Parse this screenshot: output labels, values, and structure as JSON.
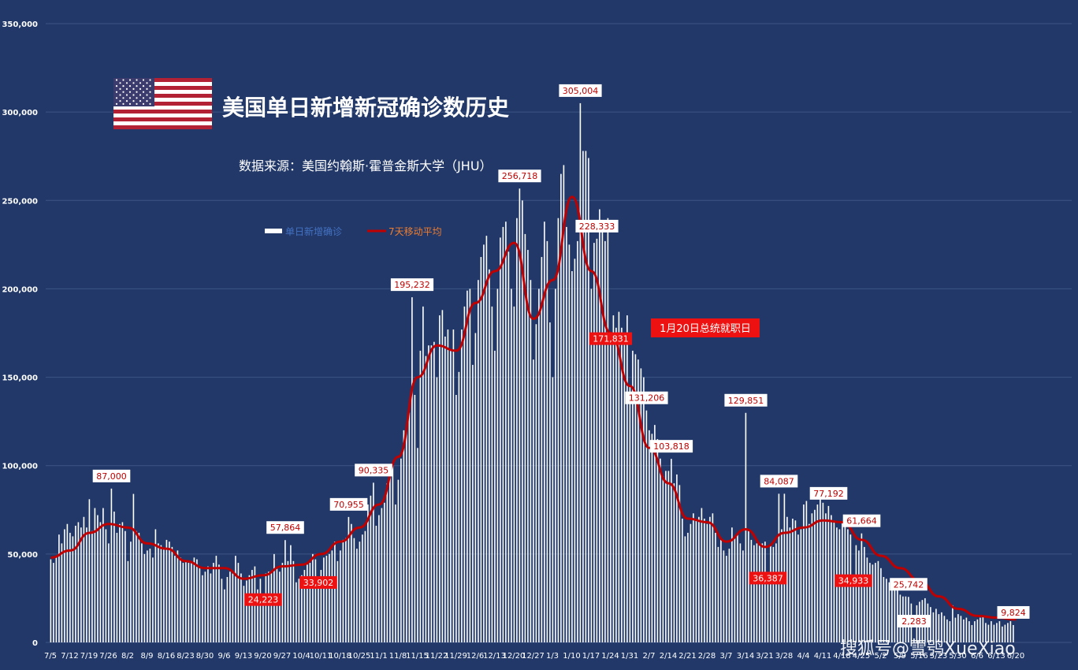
{
  "title": "美国单日新增新冠确诊数历史",
  "subtitle": "数据来源：美国约翰斯·霍普金斯大学（JHU）",
  "watermark": "搜狐号@雪鸮XueXiao",
  "annotation_inauguration": "1月20日总统就职日",
  "colors": {
    "background": "#213868",
    "bars": "#ffffff",
    "moving_average": "#c00000",
    "label_red_bg": "#ee1111",
    "legend_bars_text": "#4472c4",
    "legend_line_text": "#ed7d31"
  },
  "icons": [
    "us-flag-icon"
  ],
  "chart_data": {
    "type": "bar",
    "ylim": [
      0,
      350000
    ],
    "yticks": [
      "0",
      "50,000",
      "100,000",
      "150,000",
      "200,000",
      "250,000",
      "300,000",
      "350,000"
    ],
    "ytick_values": [
      0,
      50000,
      100000,
      150000,
      200000,
      250000,
      300000,
      350000
    ],
    "grid": true,
    "legend_placement": "upper-left",
    "x_start": "2020-07-05",
    "x_ticks": [
      "7/5",
      "7/12",
      "7/19",
      "7/26",
      "8/2",
      "8/9",
      "8/16",
      "8/23",
      "8/30",
      "9/6",
      "9/13",
      "9/20",
      "9/27",
      "10/4",
      "10/11",
      "10/18",
      "10/25",
      "11/1",
      "11/8",
      "11/15",
      "11/22",
      "11/29",
      "12/6",
      "12/13",
      "12/20",
      "12/27",
      "1/3",
      "1/10",
      "1/17",
      "1/24",
      "1/31",
      "2/7",
      "2/14",
      "2/21",
      "2/28",
      "3/7",
      "3/14",
      "3/21",
      "3/28",
      "4/4",
      "4/11",
      "4/18",
      "4/25",
      "5/2",
      "5/9",
      "5/16",
      "5/23",
      "5/30",
      "6/6",
      "6/13",
      "6/20"
    ],
    "series": [
      {
        "name": "单日新增确诊",
        "kind": "bar"
      },
      {
        "name": "7天移动平均",
        "kind": "line"
      }
    ],
    "weekly_daily_values": [
      [
        47000,
        45000,
        49000,
        61000,
        56000,
        64000,
        67000
      ],
      [
        62000,
        60000,
        66000,
        68000,
        65000,
        71000,
        65000
      ],
      [
        81000,
        63000,
        76000,
        72000,
        68000,
        76000,
        64000
      ],
      [
        56000,
        87000,
        74000,
        62000,
        67000,
        68000,
        63000
      ],
      [
        46000,
        57000,
        84000,
        63000,
        62000,
        56000,
        50000
      ],
      [
        52000,
        53000,
        48000,
        64000,
        56000,
        55000,
        53000
      ],
      [
        58000,
        57000,
        54000,
        49000,
        52000,
        48000,
        45000
      ],
      [
        46000,
        45000,
        45000,
        48000,
        47000,
        43000,
        38000
      ],
      [
        40000,
        43000,
        39000,
        45000,
        49000,
        44000,
        36000
      ],
      [
        30000,
        37000,
        40000,
        39000,
        49000,
        45000,
        39000
      ],
      [
        32000,
        35000,
        38000,
        41000,
        43000,
        30000,
        36000
      ],
      [
        24223,
        39000,
        40000,
        40000,
        50000,
        42000,
        40000
      ],
      [
        45000,
        57864,
        46000,
        55000,
        46000,
        34000,
        36000
      ],
      [
        38000,
        41000,
        44000,
        45000,
        50000,
        47000,
        33902
      ],
      [
        41000,
        48000,
        49000,
        50000,
        52000,
        57000,
        46000
      ],
      [
        52000,
        58000,
        59000,
        70955,
        67000,
        59000,
        53000
      ],
      [
        57000,
        61000,
        63000,
        78000,
        83000,
        90335,
        66000
      ],
      [
        72000,
        76000,
        79000,
        90000,
        99000,
        101000,
        78000
      ],
      [
        92000,
        104000,
        120000,
        120000,
        130000,
        195232,
        140000
      ],
      [
        110000,
        165000,
        190000,
        162000,
        168000,
        168000,
        170000
      ],
      [
        150000,
        185000,
        188000,
        173000,
        177000,
        165000,
        177000
      ],
      [
        140000,
        153000,
        177000,
        190000,
        199000,
        200000,
        157000
      ],
      [
        175000,
        205000,
        218000,
        225000,
        230000,
        211000,
        190000
      ],
      [
        165000,
        200000,
        229000,
        235000,
        238000,
        221000,
        200000
      ],
      [
        190000,
        240000,
        256718,
        250000,
        231000,
        222000,
        205000
      ],
      [
        160000,
        180000,
        200000,
        218000,
        238000,
        227000,
        181000
      ],
      [
        150000,
        200000,
        240000,
        265000,
        270000,
        235000,
        225000
      ],
      [
        210000,
        217000,
        227000,
        305004,
        278000,
        278000,
        274000
      ],
      [
        200000,
        226000,
        228333,
        245000,
        234000,
        227000,
        240000
      ],
      [
        171831,
        185000,
        178000,
        187000,
        178000,
        171831,
        185000
      ],
      [
        145000,
        165000,
        163000,
        160000,
        155000,
        150000,
        131206
      ],
      [
        120000,
        118000,
        123000,
        115000,
        104000,
        94000,
        97000
      ],
      [
        97000,
        103818,
        90000,
        95000,
        89000,
        70000,
        60000
      ],
      [
        62000,
        67000,
        73000,
        69000,
        71000,
        76000,
        70000
      ],
      [
        67000,
        71000,
        73000,
        62000,
        54000,
        58000,
        52000
      ],
      [
        49000,
        53000,
        65000,
        60000,
        61000,
        56000,
        52000
      ],
      [
        129851,
        63000,
        58000,
        55000,
        56000,
        55000,
        56000
      ],
      [
        57000,
        36387,
        55000,
        54000,
        56000,
        84087,
        64000
      ],
      [
        84087,
        71000,
        65000,
        70000,
        69000,
        61000,
        64000
      ],
      [
        78000,
        80000,
        67000,
        73000,
        75000,
        78000,
        82000
      ],
      [
        79000,
        73000,
        77192,
        72000,
        69000,
        65000,
        64000
      ],
      [
        68000,
        70000,
        64000,
        61000,
        34933,
        55000,
        52000
      ],
      [
        61664,
        54000,
        48000,
        45000,
        44000,
        45000,
        46000
      ],
      [
        42000,
        37000,
        36000,
        34000,
        33000,
        31000,
        35000
      ],
      [
        27000,
        26000,
        26000,
        25742,
        22000,
        2283,
        21000
      ],
      [
        23000,
        24000,
        25000,
        22000,
        20000,
        17000,
        19000
      ],
      [
        16000,
        17000,
        15000,
        13000,
        12000,
        21000,
        14000
      ],
      [
        16000,
        15000,
        13000,
        14000,
        12000,
        9824,
        12000
      ],
      [
        13000,
        14000,
        15000,
        11000,
        10000,
        12000,
        10000
      ],
      [
        11000,
        12000,
        9000,
        10000,
        11000,
        12000,
        9824
      ]
    ],
    "moving_average_anchors": [
      {
        "date": "7/5",
        "v": 48000
      },
      {
        "date": "7/12",
        "v": 52000
      },
      {
        "date": "7/19",
        "v": 62000
      },
      {
        "date": "7/26",
        "v": 67000
      },
      {
        "date": "8/2",
        "v": 65000
      },
      {
        "date": "8/9",
        "v": 56000
      },
      {
        "date": "8/16",
        "v": 53000
      },
      {
        "date": "8/23",
        "v": 46000
      },
      {
        "date": "8/30",
        "v": 42000
      },
      {
        "date": "9/6",
        "v": 42000
      },
      {
        "date": "9/13",
        "v": 36000
      },
      {
        "date": "9/20",
        "v": 38000
      },
      {
        "date": "9/27",
        "v": 43000
      },
      {
        "date": "10/4",
        "v": 44000
      },
      {
        "date": "10/11",
        "v": 50000
      },
      {
        "date": "10/18",
        "v": 57000
      },
      {
        "date": "10/25",
        "v": 65000
      },
      {
        "date": "11/1",
        "v": 78000
      },
      {
        "date": "11/8",
        "v": 105000
      },
      {
        "date": "11/15",
        "v": 150000
      },
      {
        "date": "11/22",
        "v": 168000
      },
      {
        "date": "11/29",
        "v": 165000
      },
      {
        "date": "12/6",
        "v": 192000
      },
      {
        "date": "12/13",
        "v": 210000
      },
      {
        "date": "12/20",
        "v": 226000
      },
      {
        "date": "12/27",
        "v": 183000
      },
      {
        "date": "1/3",
        "v": 205000
      },
      {
        "date": "1/10",
        "v": 252000
      },
      {
        "date": "1/17",
        "v": 210000
      },
      {
        "date": "1/24",
        "v": 175000
      },
      {
        "date": "1/31",
        "v": 145000
      },
      {
        "date": "2/7",
        "v": 110000
      },
      {
        "date": "2/14",
        "v": 90000
      },
      {
        "date": "2/21",
        "v": 70000
      },
      {
        "date": "2/28",
        "v": 68000
      },
      {
        "date": "3/7",
        "v": 57000
      },
      {
        "date": "3/14",
        "v": 64000
      },
      {
        "date": "3/21",
        "v": 54000
      },
      {
        "date": "3/28",
        "v": 62000
      },
      {
        "date": "4/4",
        "v": 65000
      },
      {
        "date": "4/11",
        "v": 69000
      },
      {
        "date": "4/18",
        "v": 68000
      },
      {
        "date": "4/25",
        "v": 58000
      },
      {
        "date": "5/2",
        "v": 49000
      },
      {
        "date": "5/9",
        "v": 42000
      },
      {
        "date": "5/16",
        "v": 35000
      },
      {
        "date": "5/23",
        "v": 26000
      },
      {
        "date": "5/30",
        "v": 19000
      },
      {
        "date": "6/6",
        "v": 15000
      },
      {
        "date": "6/13",
        "v": 14000
      },
      {
        "date": "6/20",
        "v": 13000
      }
    ],
    "data_labels": [
      {
        "text": "87,000",
        "date_index": 22,
        "value": 87000,
        "style": "white"
      },
      {
        "text": "24,223",
        "date_index": 77,
        "value": 24223,
        "style": "red"
      },
      {
        "text": "57,864",
        "date_index": 85,
        "value": 57864,
        "style": "white"
      },
      {
        "text": "33,902",
        "date_index": 97,
        "value": 33902,
        "style": "red"
      },
      {
        "text": "70,955",
        "date_index": 108,
        "value": 70955,
        "style": "white"
      },
      {
        "text": "90,335",
        "date_index": 117,
        "value": 90335,
        "style": "white"
      },
      {
        "text": "195,232",
        "date_index": 131,
        "value": 195232,
        "style": "white"
      },
      {
        "text": "256,718",
        "date_index": 170,
        "value": 256718,
        "style": "white"
      },
      {
        "text": "305,004",
        "date_index": 192,
        "value": 305004,
        "style": "white"
      },
      {
        "text": "228,333",
        "date_index": 198,
        "value": 228333,
        "style": "white"
      },
      {
        "text": "171,831",
        "date_index": 203,
        "value": 171831,
        "style": "red"
      },
      {
        "text": "131,206",
        "date_index": 216,
        "value": 131206,
        "style": "white"
      },
      {
        "text": "103,818",
        "date_index": 225,
        "value": 103818,
        "style": "white"
      },
      {
        "text": "129,851",
        "date_index": 252,
        "value": 129851,
        "style": "white"
      },
      {
        "text": "36,387",
        "date_index": 260,
        "value": 36387,
        "style": "red"
      },
      {
        "text": "84,087",
        "date_index": 264,
        "value": 84087,
        "style": "white"
      },
      {
        "text": "77,192",
        "date_index": 282,
        "value": 77192,
        "style": "white"
      },
      {
        "text": "34,933",
        "date_index": 291,
        "value": 34933,
        "style": "red"
      },
      {
        "text": "61,664",
        "date_index": 294,
        "value": 61664,
        "style": "white"
      },
      {
        "text": "2,283",
        "date_index": 313,
        "value": 2283,
        "style": "white"
      },
      {
        "text": "25,742",
        "date_index": 311,
        "value": 25742,
        "style": "white"
      },
      {
        "text": "9,824",
        "date_index": 349,
        "value": 9824,
        "style": "white"
      }
    ]
  }
}
